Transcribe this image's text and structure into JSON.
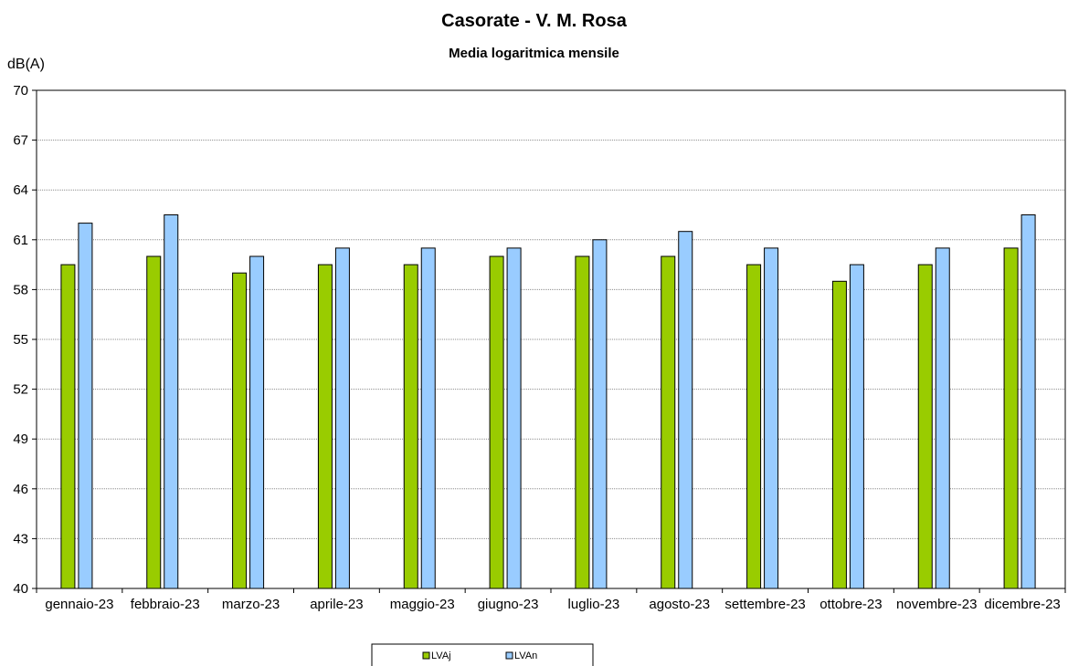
{
  "chart_data": {
    "type": "bar",
    "title": "Casorate - V. M. Rosa",
    "subtitle": "Media logaritmica mensile",
    "ylabel": "dB(A)",
    "xlabel": "",
    "ylim": [
      40,
      70
    ],
    "yticks": [
      40,
      43,
      46,
      49,
      52,
      55,
      58,
      61,
      64,
      67,
      70
    ],
    "grid": true,
    "legend_position": "bottom",
    "categories": [
      "gennaio-23",
      "febbraio-23",
      "marzo-23",
      "aprile-23",
      "maggio-23",
      "giugno-23",
      "luglio-23",
      "agosto-23",
      "settembre-23",
      "ottobre-23",
      "novembre-23",
      "dicembre-23"
    ],
    "series": [
      {
        "name": "LVAj",
        "color": "#99cc00",
        "values": [
          59.5,
          60.0,
          59.0,
          59.5,
          59.5,
          60.0,
          60.0,
          60.0,
          59.5,
          58.5,
          59.5,
          60.5
        ]
      },
      {
        "name": "LVAn",
        "color": "#99ccff",
        "values": [
          62.0,
          62.5,
          60.0,
          60.5,
          60.5,
          60.5,
          61.0,
          61.5,
          60.5,
          59.5,
          60.5,
          62.5
        ]
      }
    ]
  }
}
